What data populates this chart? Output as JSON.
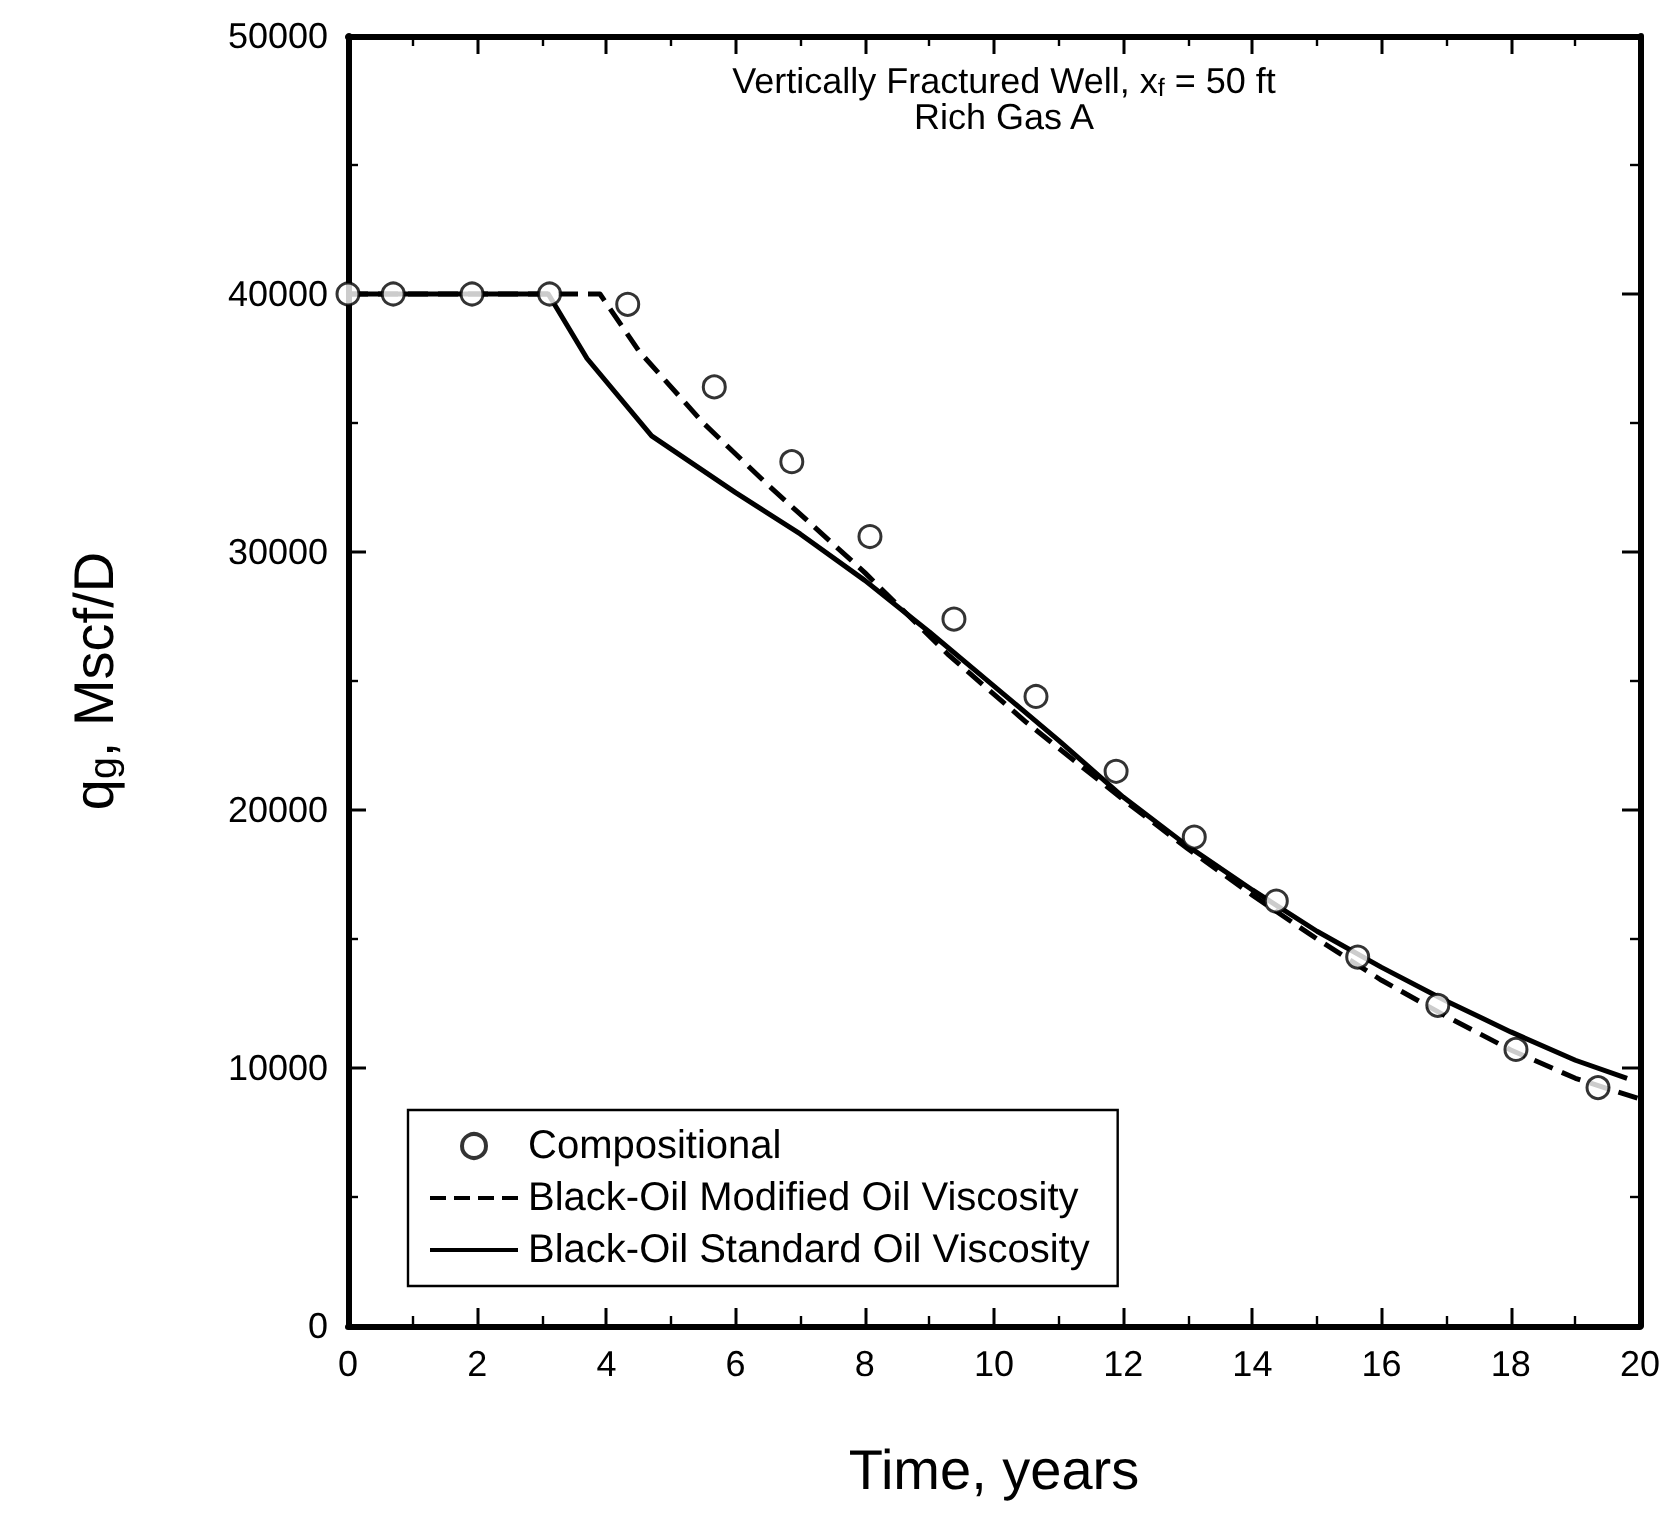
{
  "chart_data": {
    "type": "line",
    "title": "Vertically Fractured Well, x$_{f}$ = 50 ft",
    "subtitle": "Rich Gas A",
    "xlabel": "Time, years",
    "ylabel": "q$_{g}$, Mscf/D",
    "xlim": [
      0,
      20
    ],
    "xticks": [
      0,
      2,
      4,
      6,
      8,
      10,
      12,
      14,
      16,
      18,
      20
    ],
    "ylim": [
      0,
      50000
    ],
    "yticks": [
      0,
      10000,
      20000,
      30000,
      40000,
      50000
    ],
    "grid": false,
    "legend": "bottom left",
    "series": [
      {
        "name": "Compositional",
        "type": "scatter",
        "marker": "circle",
        "color": "#000000",
        "x": [
          0,
          0.7,
          1.92,
          3.12,
          4.33,
          5.67,
          6.87,
          8.08,
          9.38,
          10.65,
          11.89,
          13.1,
          14.37,
          15.63,
          16.87,
          18.08,
          19.35
        ],
        "values": [
          40000,
          40000,
          40000,
          40000,
          39600,
          36400,
          33500,
          30600,
          27400,
          24400,
          21500,
          18950,
          16470,
          14300,
          12430,
          10720,
          9240
        ]
      },
      {
        "name": "Black-Oil Modified Oil Viscosity",
        "marker": "none",
        "line_style": "dashed",
        "color": "#000000",
        "x": [
          0,
          3.9,
          4.5,
          5.5,
          6.5,
          8,
          9.3,
          10.5,
          12,
          13,
          14,
          15,
          16,
          17,
          18,
          19,
          20
        ],
        "values": [
          40000,
          40000,
          37800,
          35000,
          32600,
          29200,
          26000,
          23400,
          20400,
          18500,
          16700,
          15000,
          13400,
          12000,
          10700,
          9600,
          8800
        ]
      },
      {
        "name": "Black-Oil Standard Oil Viscosity",
        "marker": "none",
        "line_style": "solid",
        "color": "#000000",
        "x": [
          0,
          3.1,
          3.7,
          4.7,
          6,
          7,
          8,
          9,
          10,
          11,
          12,
          13,
          14,
          15,
          16,
          17,
          18,
          19,
          19.8
        ],
        "values": [
          40000,
          40000,
          37500,
          34500,
          32300,
          30700,
          28900,
          26900,
          24800,
          22700,
          20500,
          18600,
          16900,
          15300,
          13900,
          12600,
          11400,
          10300,
          9600
        ]
      }
    ]
  }
}
